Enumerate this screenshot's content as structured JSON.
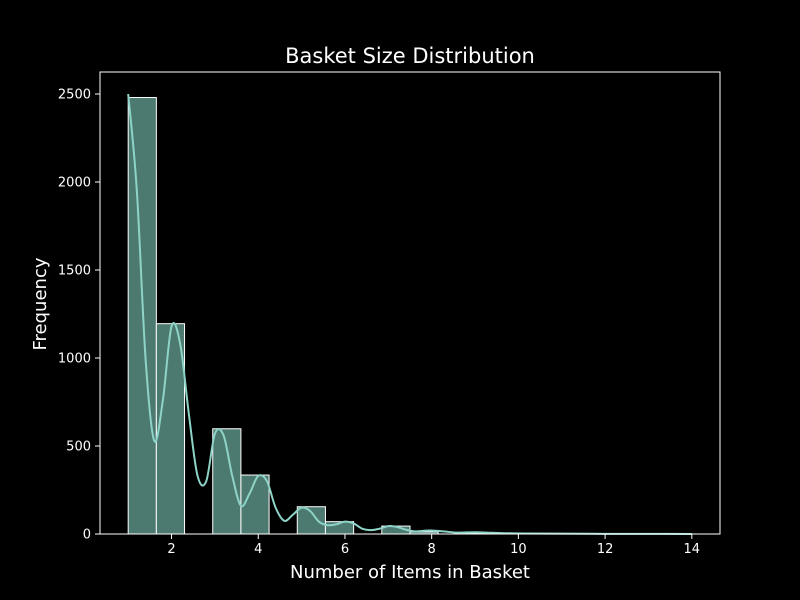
{
  "chart_data": {
    "type": "bar",
    "title": "Basket Size Distribution",
    "xlabel": "Number of Items in Basket",
    "ylabel": "Frequency",
    "xlim": [
      0.35,
      14.65
    ],
    "ylim": [
      0,
      2625
    ],
    "x_ticks": [
      2,
      4,
      6,
      8,
      10,
      12,
      14
    ],
    "y_ticks": [
      0,
      500,
      1000,
      1500,
      2000,
      2500
    ],
    "bin_edges": [
      1.0,
      1.65,
      2.3,
      2.95,
      3.6,
      4.25,
      4.9,
      5.55,
      6.2,
      6.85,
      7.5,
      8.15,
      8.8,
      9.45,
      10.1,
      10.75,
      11.4,
      12.05,
      12.7,
      13.35,
      14.0
    ],
    "values": [
      2480,
      1195,
      0,
      598,
      335,
      0,
      155,
      70,
      0,
      45,
      12,
      0,
      4,
      2,
      0,
      1,
      0,
      0,
      0,
      1
    ],
    "kde_line": {
      "x": [
        1.0,
        1.2,
        1.4,
        1.6,
        1.8,
        2.0,
        2.2,
        2.4,
        2.6,
        2.8,
        3.0,
        3.2,
        3.4,
        3.6,
        3.8,
        4.0,
        4.2,
        4.4,
        4.6,
        4.8,
        5.0,
        5.2,
        5.4,
        5.6,
        5.8,
        6.0,
        6.2,
        6.4,
        6.6,
        6.8,
        7.0,
        7.2,
        7.4,
        7.6,
        7.8,
        8.0,
        8.3,
        8.6,
        9.0,
        9.4,
        9.8,
        10.2,
        11.0,
        12.0,
        13.0,
        14.0
      ],
      "y": [
        2500,
        1950,
        1000,
        530,
        760,
        1180,
        1080,
        680,
        330,
        300,
        570,
        560,
        330,
        160,
        230,
        330,
        300,
        150,
        75,
        110,
        150,
        130,
        70,
        50,
        55,
        70,
        60,
        30,
        22,
        30,
        45,
        40,
        25,
        15,
        18,
        20,
        14,
        8,
        10,
        7,
        4,
        3,
        2,
        1,
        1,
        0
      ]
    },
    "colors": {
      "background": "#000000",
      "bar_fill": "#4d7a70",
      "bar_edge": "#ffffff",
      "kde_line": "#8dd3c7",
      "axes": "#ffffff",
      "text": "#ffffff"
    },
    "grid": false,
    "legend": "none"
  }
}
